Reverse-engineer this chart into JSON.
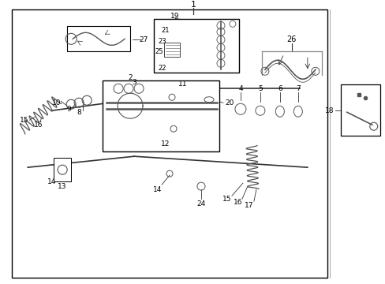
{
  "bg_color": "#ffffff",
  "border_color": "#000000",
  "line_color": "#333333",
  "part_color": "#555555",
  "fig_width": 4.89,
  "fig_height": 3.6,
  "dpi": 100
}
